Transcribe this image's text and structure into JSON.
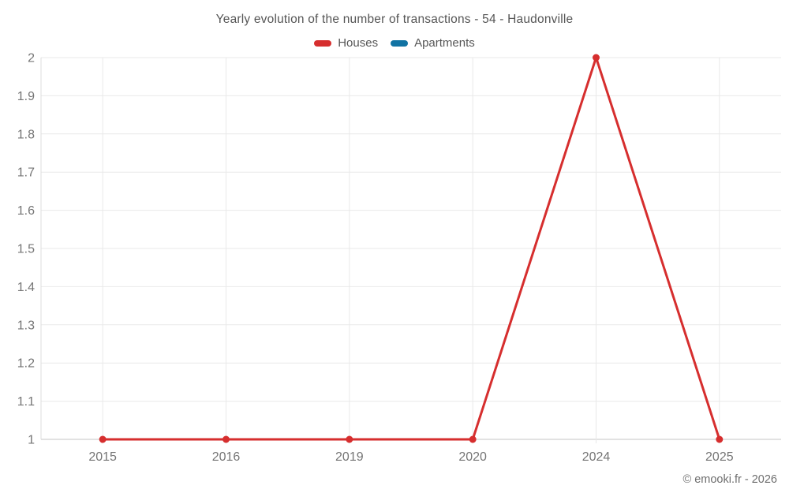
{
  "title": "Yearly evolution of the number of transactions - 54 - Haudonville",
  "footer": "© emooki.fr - 2026",
  "legend": [
    {
      "label": "Houses",
      "color": "#d62e2e"
    },
    {
      "label": "Apartments",
      "color": "#1173a3"
    }
  ],
  "colors": {
    "houses": "#d62e2e",
    "apartments": "#1173a3",
    "grid_line": "#e9e9e9",
    "axis_line": "#c6c6c6",
    "tick_text": "#757575",
    "title_text": "#565656"
  },
  "chart_data": {
    "type": "line",
    "title": "Yearly evolution of the number of transactions - 54 - Haudonville",
    "categories": [
      "2015",
      "2016",
      "2019",
      "2020",
      "2024",
      "2025"
    ],
    "series": [
      {
        "name": "Houses",
        "color": "#d62e2e",
        "values": [
          1,
          1,
          1,
          1,
          2,
          1
        ]
      },
      {
        "name": "Apartments",
        "color": "#1173a3",
        "values": []
      }
    ],
    "xlabel": "",
    "ylabel": "",
    "ylim": [
      1,
      2
    ],
    "ytick_step": 0.1,
    "grid": true,
    "legend_position": "top"
  }
}
